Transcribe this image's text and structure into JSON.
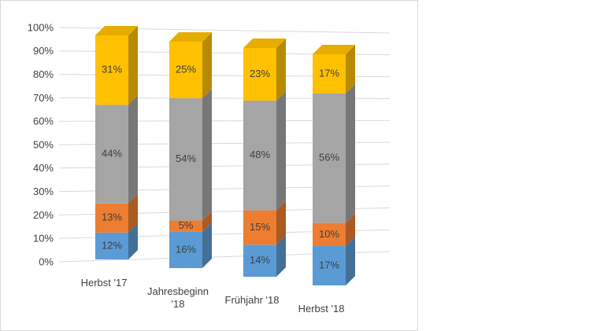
{
  "chart_data": {
    "type": "bar3d",
    "categories": [
      "Herbst '17",
      "Jahresbeginn '18",
      "Frühjahr '18",
      "Herbst '18"
    ],
    "series": [
      {
        "color": "#5b9bd5",
        "values": [
          12,
          16,
          14,
          17
        ],
        "value_labels": [
          "12%",
          "16%",
          "14%",
          "17%"
        ]
      },
      {
        "color": "#ed7d31",
        "values": [
          13,
          5,
          15,
          10
        ],
        "value_labels": [
          "13%",
          "5%",
          "15%",
          "10%"
        ]
      },
      {
        "color": "#a5a5a5",
        "values": [
          44,
          54,
          48,
          56
        ],
        "value_labels": [
          "44%",
          "54%",
          "48%",
          "56%"
        ]
      },
      {
        "color": "#ffc000",
        "values": [
          31,
          25,
          23,
          17
        ],
        "value_labels": [
          "31%",
          "25%",
          "23%",
          "17%"
        ]
      }
    ],
    "ylim": [
      0,
      100
    ],
    "yticks": [
      {
        "value": 0,
        "label": "0%"
      },
      {
        "value": 10,
        "label": "10%"
      },
      {
        "value": 20,
        "label": "20%"
      },
      {
        "value": 30,
        "label": "30%"
      },
      {
        "value": 40,
        "label": "40%"
      },
      {
        "value": 50,
        "label": "50%"
      },
      {
        "value": 60,
        "label": "60%"
      },
      {
        "value": 70,
        "label": "70%"
      },
      {
        "value": 80,
        "label": "80%"
      },
      {
        "value": 90,
        "label": "90%"
      },
      {
        "value": 100,
        "label": "100%"
      }
    ],
    "grid": true
  }
}
